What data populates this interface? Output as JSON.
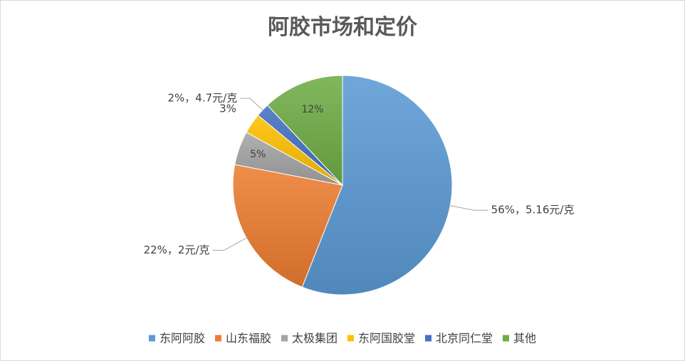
{
  "chart_data": {
    "type": "pie",
    "title": "阿胶市场和定价",
    "legend_position": "bottom",
    "slices": [
      {
        "name": "东阿阿胶",
        "percent": 56,
        "label": "56%，5.16元/克",
        "color": "#5B9BD5"
      },
      {
        "name": "山东福胶",
        "percent": 22,
        "label": "22%，2元/克",
        "color": "#ED7D31"
      },
      {
        "name": "太极集团",
        "percent": 5,
        "label": "5%",
        "color": "#A5A5A5"
      },
      {
        "name": "东阿国胶堂",
        "percent": 3,
        "label": "3%",
        "color": "#FFC000"
      },
      {
        "name": "北京同仁堂",
        "percent": 2,
        "label": "2%，4.7元/克",
        "color": "#4472C4"
      },
      {
        "name": "其他",
        "percent": 12,
        "label": "12%",
        "color": "#70AD47"
      }
    ]
  }
}
